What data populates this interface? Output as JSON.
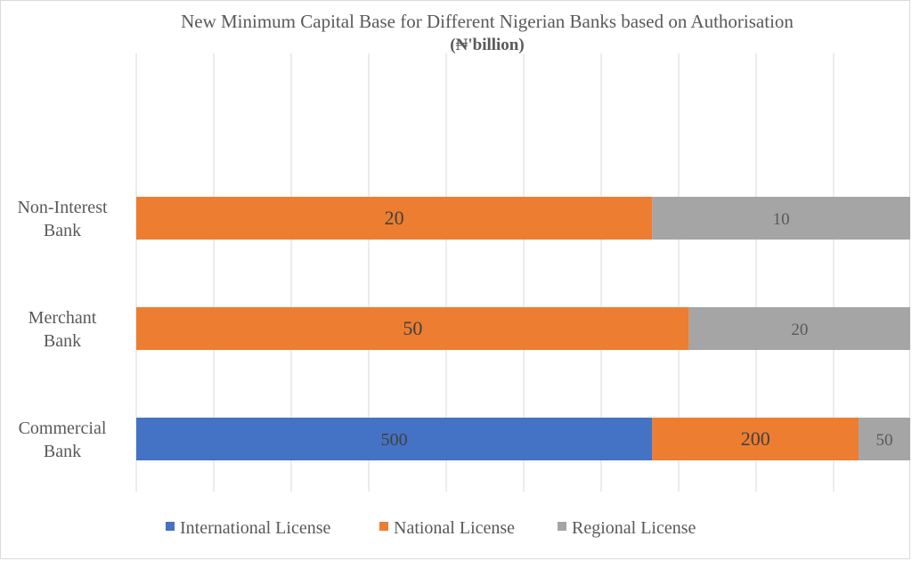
{
  "chart_data": {
    "type": "bar",
    "orientation": "horizontal",
    "stacked": true,
    "title": "New Minimum Capital Base for Different Nigerian Banks based on Authorisation",
    "subtitle": "(₦'billion)",
    "categories": [
      "Commercial Bank",
      "Merchant Bank",
      "Non-Interest Bank"
    ],
    "category_display": [
      [
        "Commercial",
        "Bank"
      ],
      [
        "Merchant",
        "Bank"
      ],
      [
        "Non-Interest",
        "Bank"
      ]
    ],
    "series": [
      {
        "name": "International License",
        "color": "#4472c4",
        "values": [
          500,
          null,
          null
        ],
        "label_color": "#404040",
        "label_size": 20
      },
      {
        "name": "National License",
        "color": "#ed7d31",
        "values": [
          200,
          50,
          20
        ],
        "label_color": "#404040",
        "label_size": 22
      },
      {
        "name": "Regional License",
        "color": "#a5a5a5",
        "values": [
          50,
          20,
          10
        ],
        "label_color": "#595959",
        "label_size": 19
      }
    ],
    "axis_scale": [
      750,
      70,
      30
    ],
    "grid": true,
    "legend": "bottom"
  }
}
